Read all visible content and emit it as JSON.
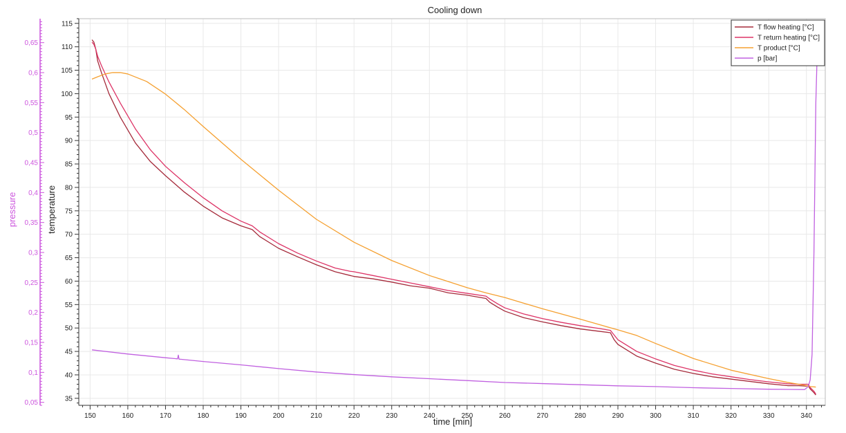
{
  "chart_data": {
    "type": "line",
    "title": "Cooling down",
    "xlabel": "time [min]",
    "ylabel": "temperature",
    "y2label": "pressure",
    "xlim": [
      147,
      345
    ],
    "ylim": [
      33.5,
      116
    ],
    "y2lim": [
      0.045,
      0.69
    ],
    "x_ticks": [
      150,
      160,
      170,
      180,
      190,
      200,
      210,
      220,
      230,
      240,
      250,
      260,
      270,
      280,
      290,
      300,
      310,
      320,
      330,
      340
    ],
    "y_ticks": [
      35,
      40,
      45,
      50,
      55,
      60,
      65,
      70,
      75,
      80,
      85,
      90,
      95,
      100,
      105,
      110,
      115
    ],
    "y2_ticks": [
      0.05,
      0.1,
      0.15,
      0.2,
      0.25,
      0.3,
      0.35,
      0.4,
      0.45,
      0.5,
      0.55,
      0.6,
      0.65
    ],
    "y2_tick_labels": [
      "0,05",
      "0,1",
      "0,15",
      "0,2",
      "0,25",
      "0,3",
      "0,35",
      "0,4",
      "0,45",
      "0,5",
      "0,55",
      "0,6",
      "0,65"
    ],
    "grid": true,
    "legend_position": "top-right",
    "colors": {
      "pressure_axis": "#cc55dd",
      "axis": "#333333",
      "grid": "#e8e8e8"
    },
    "series": [
      {
        "name": "T flow heating [°C]",
        "axis": "left",
        "color": "#a52a3a",
        "x": [
          150.5,
          151,
          151.5,
          152,
          153,
          155,
          158,
          162,
          166,
          170,
          175,
          180,
          185,
          190,
          193,
          195,
          200,
          205,
          210,
          215,
          219,
          220,
          225,
          230,
          235,
          240,
          245,
          250,
          255,
          256,
          258,
          260,
          265,
          270,
          275,
          280,
          285,
          288,
          289,
          290,
          295,
          300,
          305,
          310,
          315,
          320,
          325,
          330,
          335,
          338,
          340,
          340.5,
          341,
          342,
          342.5
        ],
        "y": [
          111.5,
          111,
          109.5,
          107,
          104.5,
          100,
          95,
          89.5,
          85.5,
          82.5,
          79,
          76,
          73.5,
          71.8,
          71,
          69.5,
          67,
          65.2,
          63.5,
          62,
          61.2,
          61,
          60.5,
          59.8,
          59,
          58.5,
          57.5,
          57,
          56.3,
          55.5,
          54.5,
          53.6,
          52.2,
          51.3,
          50.5,
          49.8,
          49.3,
          49,
          47.5,
          46.5,
          44,
          42.5,
          41.2,
          40.3,
          39.6,
          39.1,
          38.6,
          38.1,
          37.7,
          37.7,
          37.6,
          37.7,
          37,
          36.2,
          35.7
        ]
      },
      {
        "name": "T return heating [°C]",
        "axis": "left",
        "color": "#dd3366",
        "x": [
          150.5,
          151,
          151.5,
          152,
          153,
          155,
          158,
          162,
          166,
          170,
          175,
          180,
          185,
          190,
          193,
          195,
          200,
          205,
          210,
          215,
          219,
          220,
          225,
          230,
          235,
          240,
          245,
          250,
          255,
          256,
          258,
          260,
          265,
          270,
          275,
          280,
          285,
          288,
          289,
          290,
          295,
          300,
          305,
          310,
          315,
          320,
          325,
          330,
          335,
          338,
          340,
          340.5,
          341,
          342,
          342.5
        ],
        "y": [
          111,
          110.5,
          109.5,
          108,
          106,
          102.5,
          98,
          92.5,
          88,
          84.5,
          81,
          77.8,
          75,
          72.8,
          71.8,
          70.5,
          68,
          66,
          64.3,
          62.8,
          62.1,
          62,
          61.2,
          60.4,
          59.6,
          58.8,
          58,
          57.4,
          56.8,
          56.2,
          55.2,
          54.3,
          53,
          52,
          51.2,
          50.5,
          49.9,
          49.5,
          48.5,
          47.5,
          45,
          43.4,
          42,
          41,
          40.2,
          39.6,
          39,
          38.5,
          38.1,
          38,
          38,
          38,
          37.3,
          36.5,
          35.9
        ]
      },
      {
        "name": "T product [°C]",
        "axis": "left",
        "color": "#f5a030",
        "x": [
          150.5,
          152,
          154,
          156,
          158,
          160,
          165,
          170,
          175,
          180,
          190,
          200,
          210,
          220,
          230,
          240,
          250,
          255,
          260,
          270,
          280,
          290,
          295,
          300,
          310,
          320,
          330,
          335,
          340,
          341,
          342.5
        ],
        "y": [
          103.1,
          103.6,
          104.2,
          104.5,
          104.5,
          104.2,
          102.6,
          99.9,
          96.6,
          93,
          86,
          79.4,
          73.2,
          68.3,
          64.4,
          61.2,
          58.6,
          57.5,
          56.5,
          54.1,
          51.9,
          49.6,
          48.4,
          46.7,
          43.5,
          41,
          39.2,
          38.4,
          37.7,
          37.5,
          37.4
        ]
      },
      {
        "name": "p [bar]",
        "axis": "right",
        "color": "#c060e0",
        "x": [
          150.5,
          160,
          170,
          173.2,
          173.4,
          173.6,
          174,
          180,
          190,
          200,
          210,
          220,
          230,
          240,
          250,
          260,
          270,
          280,
          290,
          300,
          310,
          320,
          330,
          339.5,
          340.5,
          341,
          341.5,
          342,
          342.5,
          343
        ],
        "y": [
          0.1375,
          0.1306,
          0.1244,
          0.1225,
          0.1288,
          0.1219,
          0.1219,
          0.1181,
          0.1125,
          0.1063,
          0.1006,
          0.0963,
          0.0925,
          0.0894,
          0.0863,
          0.0831,
          0.0813,
          0.0794,
          0.0775,
          0.0763,
          0.0744,
          0.0731,
          0.0719,
          0.0713,
          0.0763,
          0.0875,
          0.13,
          0.3,
          0.55,
          0.665
        ]
      }
    ]
  }
}
